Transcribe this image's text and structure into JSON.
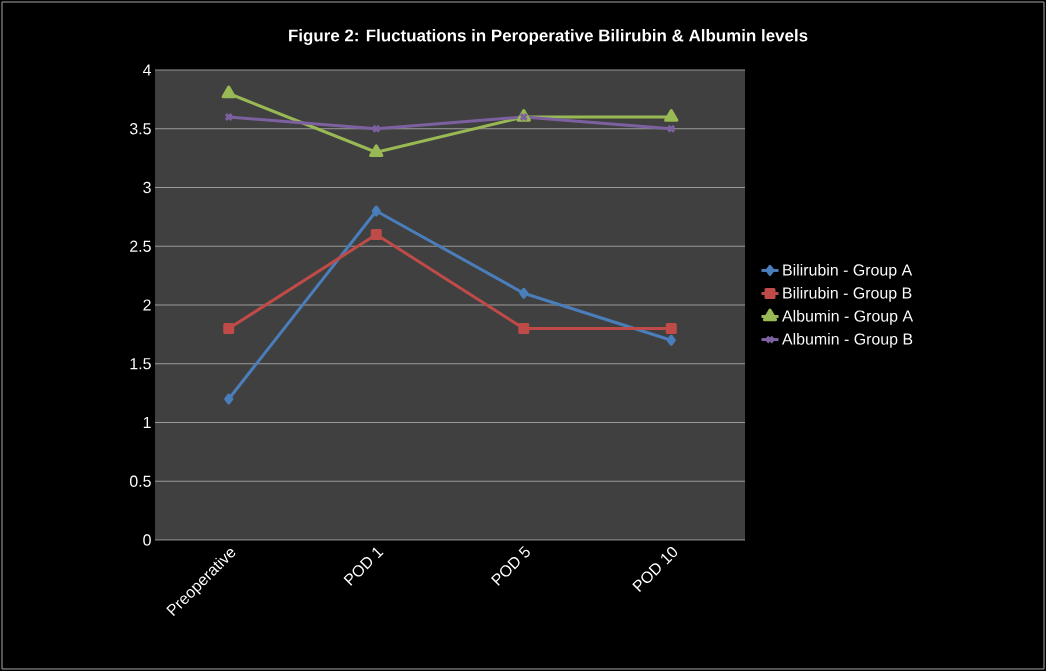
{
  "chart_data": {
    "type": "line",
    "title": "Figure 2: Fluctuations in Peroperative Bilirubin & Albumin levels",
    "categories": [
      "Preoperative",
      "POD 1",
      "POD 5",
      "POD 10"
    ],
    "series": [
      {
        "name": "Bilirubin - Group A",
        "color": "#4a7ebb",
        "marker": "diamond",
        "values": [
          1.2,
          2.8,
          2.1,
          1.7
        ]
      },
      {
        "name": "Bilirubin - Group B",
        "color": "#be4b48",
        "marker": "square",
        "values": [
          1.8,
          2.6,
          1.8,
          1.8
        ]
      },
      {
        "name": "Albumin - Group A",
        "color": "#98b954",
        "marker": "triangle",
        "values": [
          3.8,
          3.3,
          3.6,
          3.6
        ]
      },
      {
        "name": "Albumin - Group B",
        "color": "#7d60a0",
        "marker": "cross",
        "values": [
          3.6,
          3.5,
          3.6,
          3.5
        ]
      }
    ],
    "ylim": [
      0,
      4
    ],
    "yticks": [
      0,
      0.5,
      1,
      1.5,
      2,
      2.5,
      3,
      3.5,
      4
    ],
    "grid": "y",
    "legend": "right",
    "line_style": "solid"
  }
}
